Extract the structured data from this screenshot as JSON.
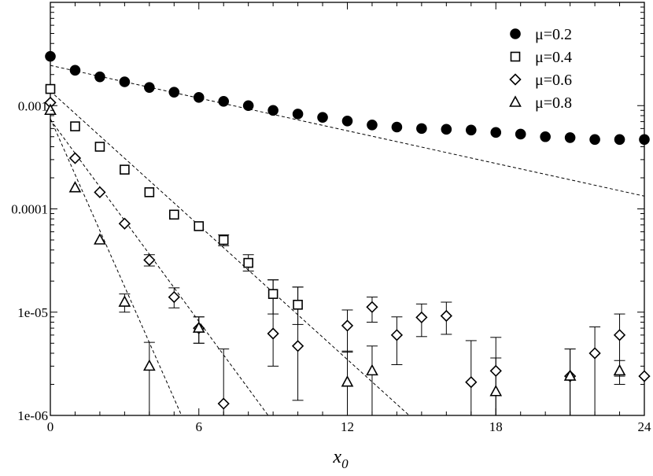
{
  "chart_data": {
    "type": "scatter",
    "xlabel": "x",
    "xlabel_sub": "0",
    "ylabel": "",
    "xlim": [
      0,
      24
    ],
    "ylim": [
      1e-06,
      0.01
    ],
    "yscale": "log",
    "xticks": [
      0,
      6,
      12,
      18,
      24
    ],
    "xtick_labels": [
      "0",
      "6",
      "12",
      "18",
      "24"
    ],
    "yticks": [
      1e-06,
      1e-05,
      0.0001,
      0.001
    ],
    "ytick_labels": [
      "1e-06",
      "1e-05",
      "0.0001",
      "0.001"
    ],
    "legend_position": "top-right",
    "grid": false,
    "series": [
      {
        "name": "μ=0.2",
        "marker": "filled-circle",
        "points": [
          {
            "x": 0,
            "y": 0.003
          },
          {
            "x": 1,
            "y": 0.0022
          },
          {
            "x": 2,
            "y": 0.0019
          },
          {
            "x": 3,
            "y": 0.0017
          },
          {
            "x": 4,
            "y": 0.0015
          },
          {
            "x": 5,
            "y": 0.00135
          },
          {
            "x": 6,
            "y": 0.0012
          },
          {
            "x": 7,
            "y": 0.0011
          },
          {
            "x": 8,
            "y": 0.001
          },
          {
            "x": 9,
            "y": 0.0009
          },
          {
            "x": 10,
            "y": 0.00083
          },
          {
            "x": 11,
            "y": 0.00077
          },
          {
            "x": 12,
            "y": 0.00071
          },
          {
            "x": 13,
            "y": 0.00065
          },
          {
            "x": 14,
            "y": 0.00062
          },
          {
            "x": 15,
            "y": 0.0006
          },
          {
            "x": 16,
            "y": 0.00059
          },
          {
            "x": 17,
            "y": 0.00058
          },
          {
            "x": 18,
            "y": 0.00055
          },
          {
            "x": 19,
            "y": 0.00053
          },
          {
            "x": 20,
            "y": 0.0005
          },
          {
            "x": 21,
            "y": 0.00049
          },
          {
            "x": 22,
            "y": 0.00047
          },
          {
            "x": 23,
            "y": 0.00047
          },
          {
            "x": 24,
            "y": 0.00047
          }
        ],
        "fit": {
          "x": [
            0,
            24
          ],
          "y": [
            0.00245,
            0.000133
          ]
        }
      },
      {
        "name": "μ=0.4",
        "marker": "open-square",
        "points": [
          {
            "x": 0,
            "y": 0.00145
          },
          {
            "x": 1,
            "y": 0.00063
          },
          {
            "x": 2,
            "y": 0.0004
          },
          {
            "x": 3,
            "y": 0.00024
          },
          {
            "x": 4,
            "y": 0.000145
          },
          {
            "x": 5,
            "y": 8.8e-05
          },
          {
            "x": 6,
            "y": 6.8e-05
          },
          {
            "x": 7,
            "y": 5e-05,
            "err": [
              4.4e-05,
              5.6e-05
            ]
          },
          {
            "x": 8,
            "y": 3e-05,
            "err": [
              2.5e-05,
              3.6e-05
            ]
          },
          {
            "x": 9,
            "y": 1.5e-05,
            "err": [
              9.6e-06,
              2.05e-05
            ]
          },
          {
            "x": 10,
            "y": 1.18e-05,
            "err": [
              7.6e-06,
              1.75e-05
            ]
          }
        ],
        "fit": {
          "x": [
            0,
            14.5
          ],
          "y": [
            0.00138,
            1e-06
          ]
        }
      },
      {
        "name": "μ=0.6",
        "marker": "open-diamond",
        "points": [
          {
            "x": 0,
            "y": 0.00107
          },
          {
            "x": 1,
            "y": 0.00031
          },
          {
            "x": 2,
            "y": 0.000145
          },
          {
            "x": 3,
            "y": 7.2e-05
          },
          {
            "x": 4,
            "y": 3.2e-05,
            "err": [
              2.8e-05,
              3.6e-05
            ]
          },
          {
            "x": 5,
            "y": 1.4e-05,
            "err": [
              1.1e-05,
              1.72e-05
            ]
          },
          {
            "x": 6,
            "y": 7e-06,
            "err": [
              5e-06,
              9e-06
            ]
          },
          {
            "x": 7,
            "y": 1.3e-06,
            "err": [
              1e-06,
              4.4e-06
            ]
          },
          {
            "x": 9,
            "y": 6.2e-06,
            "err": [
              3e-06,
              2.06e-05
            ]
          },
          {
            "x": 10,
            "y": 4.7e-06,
            "err": [
              1.4e-06,
              1.75e-05
            ]
          },
          {
            "x": 12,
            "y": 7.4e-06,
            "err": [
              4.1e-06,
              1.05e-05
            ]
          },
          {
            "x": 13,
            "y": 1.12e-05,
            "err": [
              8e-06,
              1.4e-05
            ]
          },
          {
            "x": 14,
            "y": 6e-06,
            "err": [
              3.1e-06,
              9e-06
            ]
          },
          {
            "x": 15,
            "y": 8.9e-06,
            "err": [
              5.8e-06,
              1.2e-05
            ]
          },
          {
            "x": 16,
            "y": 9.2e-06,
            "err": [
              6.1e-06,
              1.25e-05
            ]
          },
          {
            "x": 17,
            "y": 2.1e-06,
            "err": [
              1e-06,
              5.3e-06
            ]
          },
          {
            "x": 18,
            "y": 2.7e-06,
            "err": [
              1e-06,
              5.7e-06
            ]
          },
          {
            "x": 21,
            "y": 2.4e-06,
            "err": [
              1e-06,
              4.4e-06
            ]
          },
          {
            "x": 22,
            "y": 4e-06,
            "err": [
              1e-06,
              7.2e-06
            ]
          },
          {
            "x": 23,
            "y": 6e-06,
            "err": [
              2.4e-06,
              9.6e-06
            ]
          },
          {
            "x": 24,
            "y": 2.4e-06
          }
        ],
        "fit": {
          "x": [
            0,
            8.8
          ],
          "y": [
            0.00073,
            1e-06
          ]
        }
      },
      {
        "name": "μ=0.8",
        "marker": "open-triangle",
        "points": [
          {
            "x": 0,
            "y": 0.0009
          },
          {
            "x": 1,
            "y": 0.00016
          },
          {
            "x": 2,
            "y": 5e-05
          },
          {
            "x": 3,
            "y": 1.25e-05,
            "err": [
              1e-05,
              1.5e-05
            ]
          },
          {
            "x": 4,
            "y": 3e-06,
            "err": [
              1e-06,
              5.1e-06
            ]
          },
          {
            "x": 6,
            "y": 7e-06,
            "err": [
              5e-06,
              9e-06
            ]
          },
          {
            "x": 12,
            "y": 2.1e-06,
            "err": [
              1e-06,
              4.2e-06
            ]
          },
          {
            "x": 13,
            "y": 2.7e-06,
            "err": [
              1e-06,
              4.7e-06
            ]
          },
          {
            "x": 18,
            "y": 1.7e-06,
            "err": [
              1e-06,
              3.6e-06
            ]
          },
          {
            "x": 21,
            "y": 2.4e-06,
            "err": [
              1e-06,
              4.4e-06
            ]
          },
          {
            "x": 23,
            "y": 2.7e-06,
            "err": [
              2e-06,
              3.4e-06
            ]
          }
        ],
        "fit": {
          "x": [
            0,
            5.3
          ],
          "y": [
            0.00075,
            1e-06
          ]
        }
      }
    ]
  }
}
